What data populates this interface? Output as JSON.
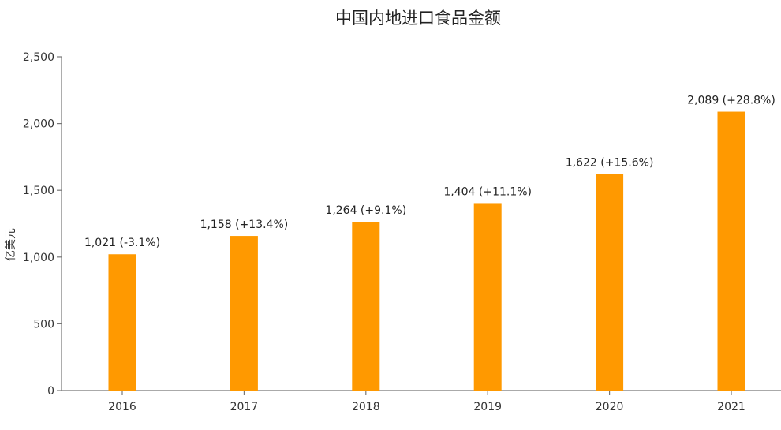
{
  "chart_data": {
    "type": "bar",
    "title": "中国内地进口食品金额",
    "xlabel": "",
    "ylabel": "亿美元",
    "categories": [
      "2016",
      "2017",
      "2018",
      "2019",
      "2020",
      "2021"
    ],
    "values": [
      1021,
      1158,
      1264,
      1404,
      1622,
      2089
    ],
    "data_labels": [
      "1,021 (-3.1%)",
      "1,158 (+13.4%)",
      "1,264 (+9.1%)",
      "1,404 (+11.1%)",
      "1,622 (+15.6%)",
      "2,089 (+28.8%)"
    ],
    "ylim": [
      0,
      2500
    ],
    "yticks": [
      0,
      500,
      1000,
      1500,
      2000,
      2500
    ],
    "ytick_labels": [
      "0",
      "500",
      "1,000",
      "1,500",
      "2,000",
      "2,500"
    ],
    "grid": false,
    "legend": "none",
    "bar_color": "#ff9900"
  }
}
